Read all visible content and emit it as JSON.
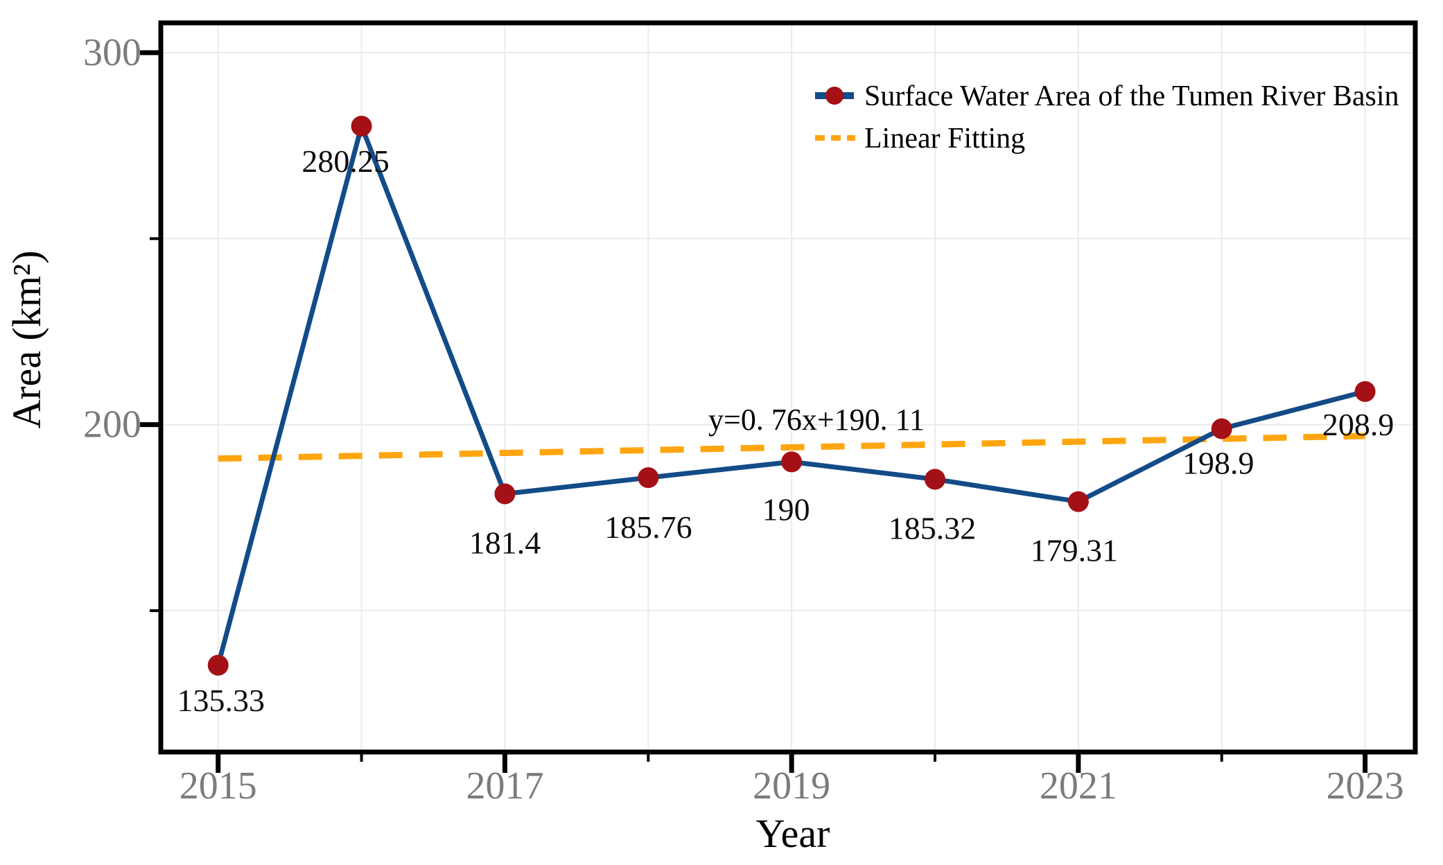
{
  "figure": {
    "legend": {
      "items": [
        {
          "label": "Surface Water Area of the Tumen River Basin",
          "marker": "navy-line-with-red-dot"
        },
        {
          "label": "Linear Fitting",
          "marker": "orange-dashed-line"
        }
      ]
    },
    "equation_label": "y=0. 76x+190. 11",
    "x_axis_title": "Year",
    "y_axis_title": "Area (km²)"
  },
  "colors": {
    "series_line": "#134b87",
    "marker": "#a31015",
    "fit_line": "#ffa50f",
    "grid": "#ebebeb",
    "axis": "#000000",
    "tick_label": "#7b7b7b",
    "background": "#ffffff"
  },
  "chart_data": {
    "type": "line",
    "title": "",
    "xlabel": "Year",
    "ylabel": "Area (km²)",
    "x": [
      2015,
      2016,
      2017,
      2018,
      2019,
      2020,
      2021,
      2022,
      2023
    ],
    "series": [
      {
        "name": "Surface Water Area of the Tumen River Basin",
        "values": [
          135.33,
          280.25,
          181.4,
          185.76,
          190,
          185.32,
          179.31,
          198.9,
          208.9
        ],
        "point_labels": [
          "135.33",
          "280.25",
          "181.4",
          "185.76",
          "190",
          "185.32",
          "179.31",
          "198.9",
          "208.9"
        ],
        "style": "solid-line-with-round-markers"
      },
      {
        "name": "Linear Fitting",
        "style": "dashed-line",
        "equation_displayed": "y=0. 76x+190. 11",
        "slope": 0.76,
        "intercept": 190.11,
        "fit_index_range": [
          1,
          9
        ],
        "fit_endpoint_values": [
          190.87,
          196.95
        ]
      }
    ],
    "x_ticks_labeled": [
      "2015",
      "2017",
      "2019",
      "2021",
      "2023"
    ],
    "x_ticks_minor": [
      2016,
      2018,
      2020,
      2022
    ],
    "y_ticks_labeled": [
      "200",
      "300"
    ],
    "y_ticks_minor": [
      150,
      250
    ],
    "xlim": [
      2014.6,
      2023.35
    ],
    "ylim": [
      112,
      308
    ],
    "grid": true,
    "legend_position": "top-right"
  }
}
